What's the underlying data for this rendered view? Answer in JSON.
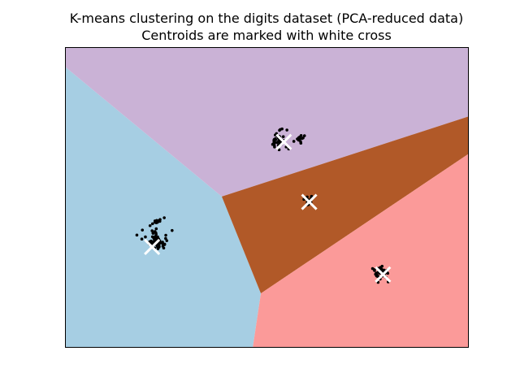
{
  "chart_data": {
    "type": "scatter",
    "title": "K-means clustering on the digits dataset (PCA-reduced data)",
    "subtitle": "Centroids are marked with white cross",
    "xlabel": "",
    "ylabel": "",
    "xlim": [
      0,
      100
    ],
    "ylim": [
      0,
      100
    ],
    "grid": false,
    "legend": "none",
    "axis_ticks": false,
    "colors": {
      "region_blue": "#a6cee3",
      "region_purple": "#cab2d6",
      "region_brown": "#b15928",
      "region_pink": "#fb9a99",
      "points": "#000000",
      "centroid": "#ffffff",
      "frame": "#000000"
    },
    "regions": [
      {
        "color": "#a6cee3",
        "vertices": [
          [
            0,
            93.5
          ],
          [
            0,
            0
          ],
          [
            46.5,
            0
          ],
          [
            48.5,
            18
          ],
          [
            38.8,
            50.3
          ]
        ]
      },
      {
        "color": "#cab2d6",
        "vertices": [
          [
            0,
            100
          ],
          [
            100,
            100
          ],
          [
            100,
            77
          ],
          [
            38.8,
            50.3
          ],
          [
            0,
            93.5
          ]
        ]
      },
      {
        "color": "#b15928",
        "vertices": [
          [
            38.8,
            50.3
          ],
          [
            100,
            77
          ],
          [
            100,
            64.5
          ],
          [
            48.5,
            18
          ]
        ]
      },
      {
        "color": "#fb9a99",
        "vertices": [
          [
            48.5,
            18
          ],
          [
            100,
            64.5
          ],
          [
            100,
            0
          ],
          [
            46.5,
            0
          ]
        ]
      }
    ],
    "clusters": [
      {
        "center": [
          22.5,
          35.5
        ],
        "rx": 3.0,
        "ry": 3.3,
        "count": 70,
        "angle": 35
      },
      {
        "center": [
          22.5,
          41.8
        ],
        "rx": 2.2,
        "ry": 0.7,
        "count": 18,
        "angle": 25
      },
      {
        "center": [
          52.8,
          69.0
        ],
        "rx": 2.5,
        "ry": 4.2,
        "count": 38,
        "angle": 0
      },
      {
        "center": [
          58.2,
          69.5
        ],
        "rx": 1.2,
        "ry": 2.6,
        "count": 12,
        "angle": -35
      },
      {
        "center": [
          60.5,
          49.0
        ],
        "rx": 1.3,
        "ry": 2.0,
        "count": 16,
        "angle": 0
      },
      {
        "center": [
          78.3,
          24.8
        ],
        "rx": 2.3,
        "ry": 2.8,
        "count": 36,
        "angle": 0
      }
    ],
    "centroids": [
      {
        "x": 21.5,
        "y": 33.5
      },
      {
        "x": 54.2,
        "y": 68.5
      },
      {
        "x": 60.5,
        "y": 48.5
      },
      {
        "x": 78.8,
        "y": 24.3
      }
    ]
  }
}
